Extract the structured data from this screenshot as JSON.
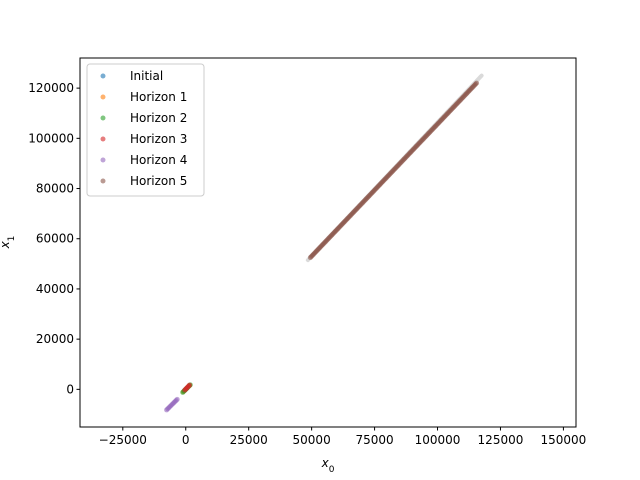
{
  "chart_data": {
    "type": "scatter",
    "title": "",
    "xlabel": "x_0",
    "ylabel": "x_1",
    "xlim": [
      -42000,
      155000
    ],
    "ylim": [
      -15000,
      132000
    ],
    "xticks": [
      -25000,
      0,
      25000,
      50000,
      75000,
      100000,
      125000,
      150000
    ],
    "yticks": [
      0,
      20000,
      40000,
      60000,
      80000,
      100000,
      120000
    ],
    "grid": false,
    "legend_position": "top-left",
    "series": [
      {
        "name": "Initial",
        "color": "#1f77b4",
        "alpha": 0.6,
        "segments": [
          {
            "from": [
              -600,
              -600
            ],
            "to": [
              600,
              600
            ]
          }
        ]
      },
      {
        "name": "Horizon 1",
        "color": "#ff7f0e",
        "alpha": 0.6,
        "segments": [
          {
            "from": [
              -1000,
              -1000
            ],
            "to": [
              1600,
              1600
            ]
          }
        ]
      },
      {
        "name": "Horizon 2",
        "color": "#2ca02c",
        "alpha": 0.6,
        "segments": [
          {
            "from": [
              -1200,
              -1200
            ],
            "to": [
              1800,
              1800
            ]
          }
        ]
      },
      {
        "name": "Horizon 3",
        "color": "#d62728",
        "alpha": 0.6,
        "segments": [
          {
            "from": [
              -400,
              -300
            ],
            "to": [
              1500,
              1700
            ]
          }
        ]
      },
      {
        "name": "Horizon 4",
        "color": "#9467bd",
        "alpha": 0.6,
        "segments": [
          {
            "from": [
              -7600,
              -8200
            ],
            "to": [
              -3400,
              -4000
            ]
          }
        ]
      },
      {
        "name": "Horizon 5",
        "color": "#8c564b",
        "alpha": 0.6,
        "segments": [
          {
            "from": [
              49500,
              52500
            ],
            "to": [
              115500,
              122000
            ]
          }
        ]
      }
    ]
  }
}
